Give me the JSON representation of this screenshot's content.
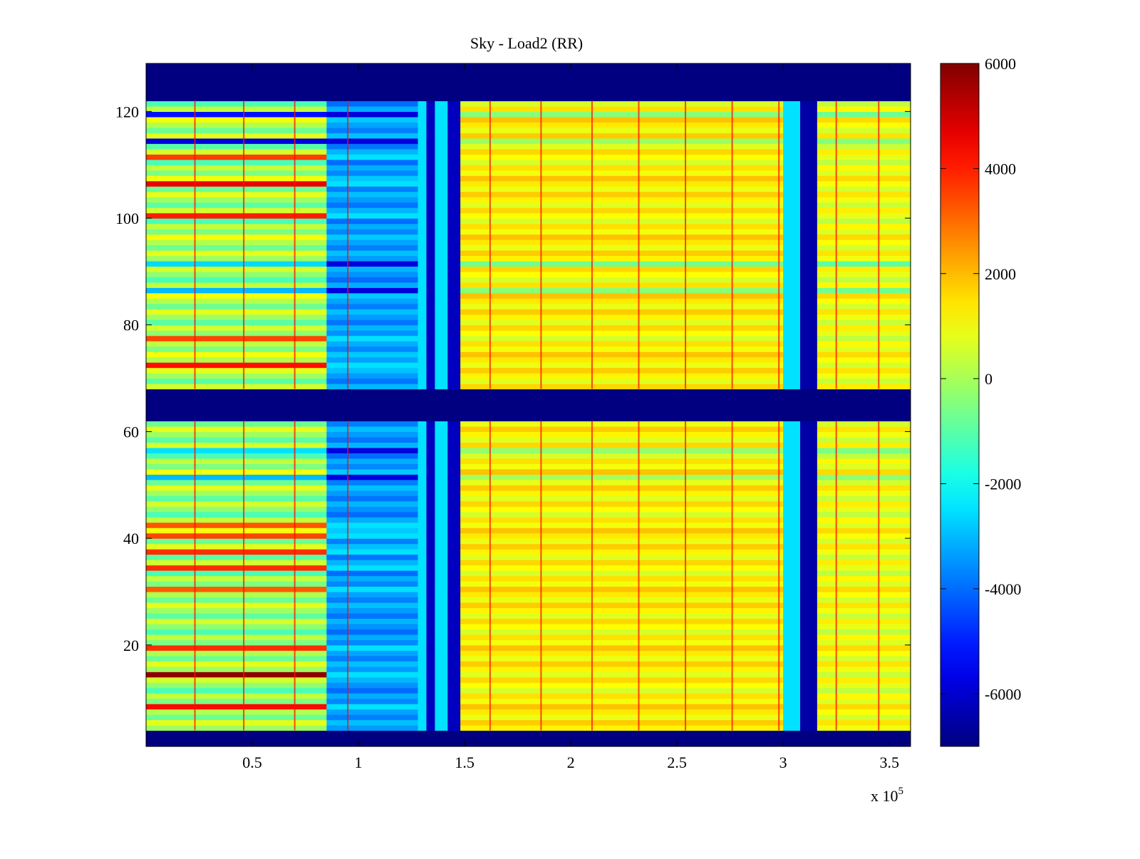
{
  "chart_data": {
    "type": "heatmap",
    "title": "Sky - Load2 (RR)",
    "xlabel": "",
    "ylabel": "",
    "x_multiplier_label": "x 10",
    "x_multiplier_exponent": "5",
    "xlim": [
      0,
      3.6
    ],
    "ylim": [
      1,
      129
    ],
    "x_ticks": [
      0.5,
      1,
      1.5,
      2,
      2.5,
      3,
      3.5
    ],
    "x_tick_labels": [
      "0.5",
      "1",
      "1.5",
      "2",
      "2.5",
      "3",
      "3.5"
    ],
    "y_ticks": [
      20,
      40,
      60,
      80,
      100,
      120
    ],
    "y_tick_labels": [
      "20",
      "40",
      "60",
      "80",
      "100",
      "120"
    ],
    "colormap": "jet",
    "clim": [
      -7000,
      6000
    ],
    "colorbar_ticks": [
      6000,
      4000,
      2000,
      0,
      -2000,
      -4000,
      -6000
    ],
    "colorbar_tick_labels": [
      "6000",
      "4000",
      "2000",
      "0",
      "-2000",
      "-4000",
      "-6000"
    ],
    "masked_row_ranges": [
      [
        1,
        4
      ],
      [
        62,
        68
      ],
      [
        122,
        129
      ]
    ],
    "masked_value": -7000,
    "x_breakpoints": [
      0,
      0.85,
      1.28,
      1.32,
      1.36,
      1.42,
      1.48,
      3.0,
      3.08,
      3.16,
      3.6
    ],
    "region_values": {
      "left_hot_rows": 1200,
      "transition": -4000,
      "cold_band": -2500,
      "deep_band": -6200,
      "plateau": 1200,
      "dip_near_3.1": -6500
    },
    "hot_rows_left": [
      {
        "row": 14,
        "value": 5800
      },
      {
        "row": 8,
        "value": 4300
      },
      {
        "row": 19,
        "value": 3800
      },
      {
        "row": 30,
        "value": 3200
      },
      {
        "row": 34,
        "value": 3800
      },
      {
        "row": 37,
        "value": 3800
      },
      {
        "row": 40,
        "value": 3500
      },
      {
        "row": 42,
        "value": 3300
      },
      {
        "row": 72,
        "value": 4200
      },
      {
        "row": 77,
        "value": 3500
      },
      {
        "row": 100,
        "value": 4000
      },
      {
        "row": 106,
        "value": 4600
      },
      {
        "row": 111,
        "value": 3600
      }
    ],
    "cold_rows_left": [
      {
        "row": 51,
        "value": -3000
      },
      {
        "row": 56,
        "value": -2500
      },
      {
        "row": 86,
        "value": -3000
      },
      {
        "row": 91,
        "value": -2600
      },
      {
        "row": 114,
        "value": -5800
      },
      {
        "row": 119,
        "value": -5200
      }
    ],
    "vertical_spike_x": [
      0.23,
      0.46,
      0.7,
      0.95,
      1.62,
      1.86,
      2.1,
      2.32,
      2.54,
      2.76,
      2.98,
      3.25,
      3.45
    ]
  }
}
